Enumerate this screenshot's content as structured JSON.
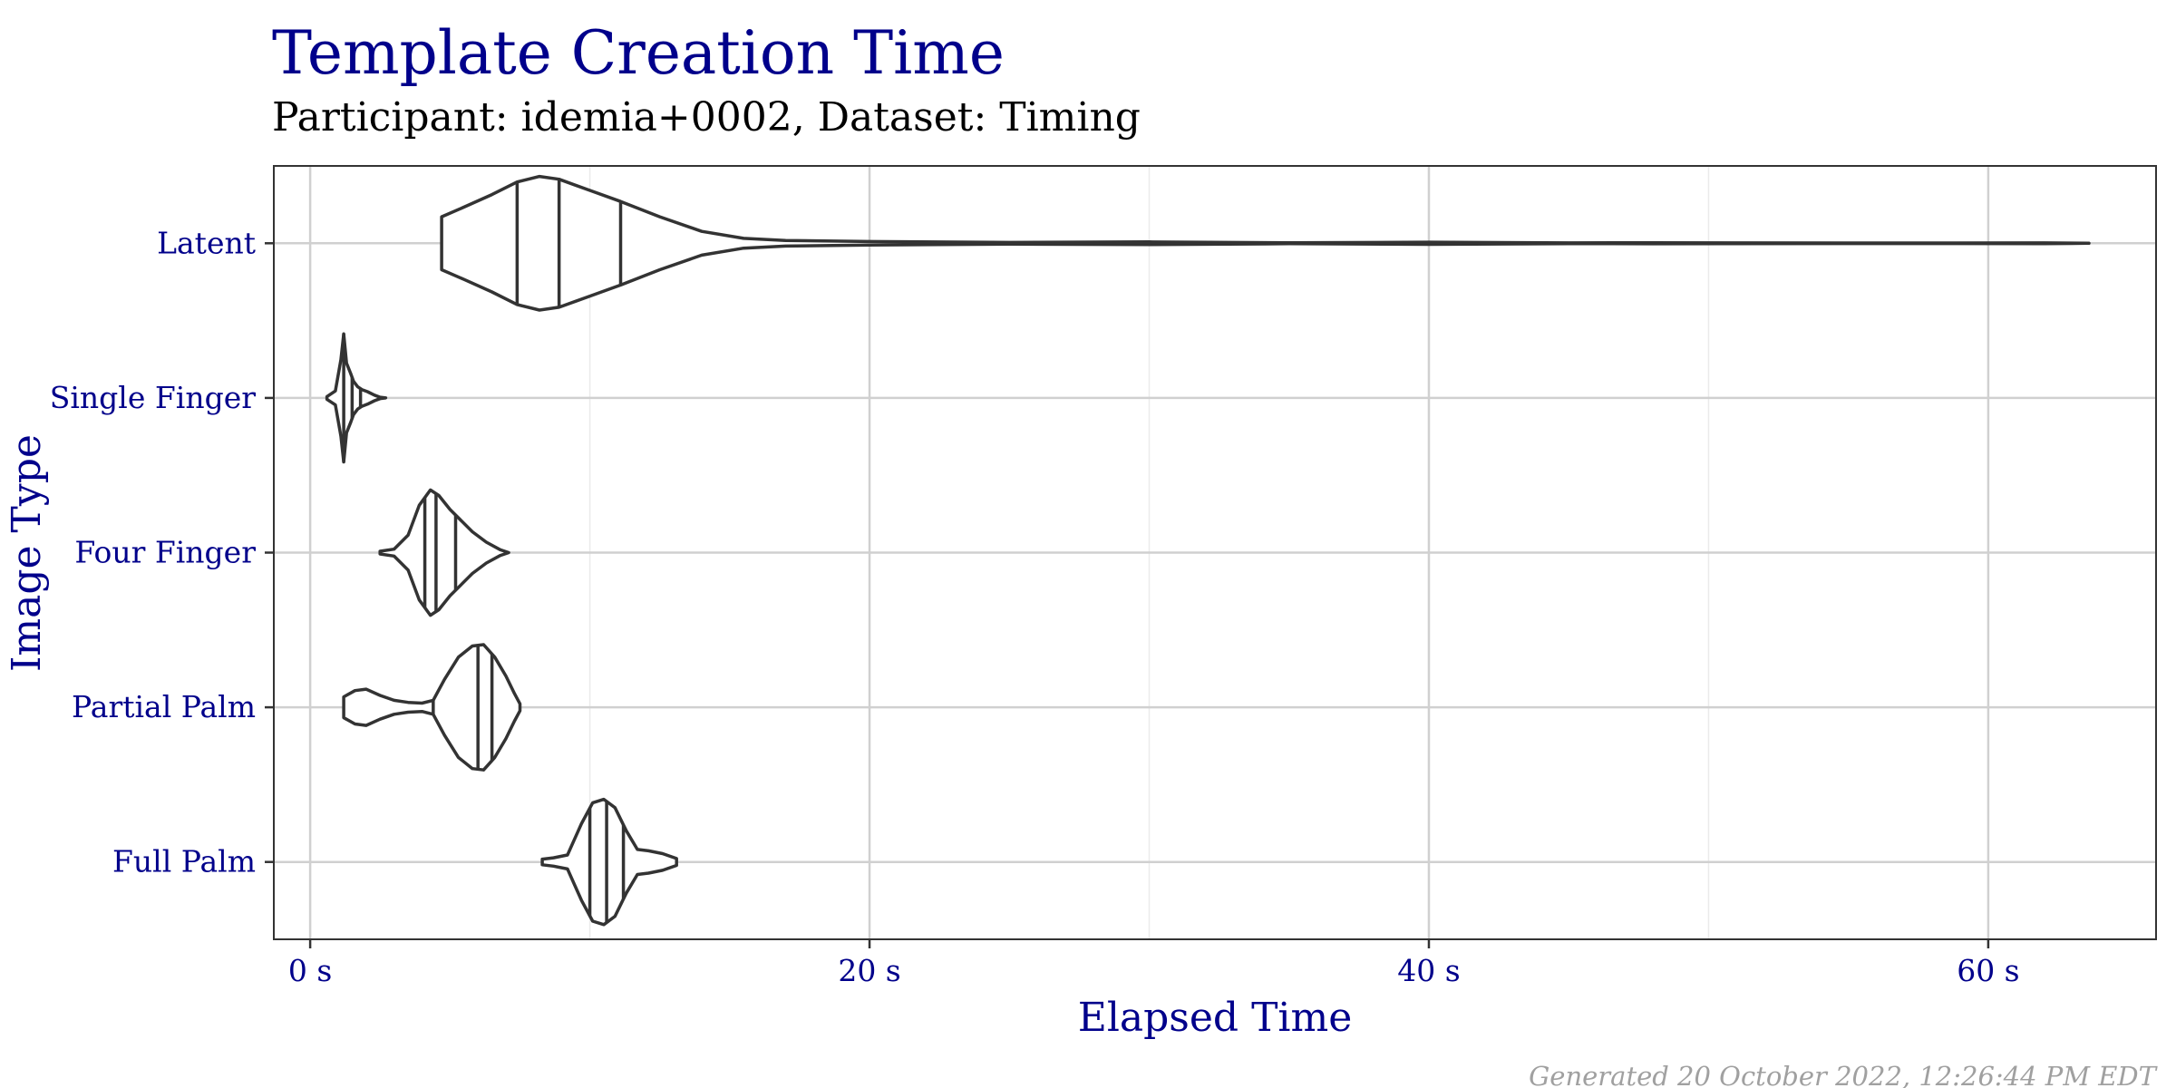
{
  "colors": {
    "title": "#00008b",
    "subtitle": "#000000",
    "caption": "#a0a0a0",
    "violin_stroke": "#333333",
    "grid_major": "#d0d0d0",
    "grid_minor": "#ebebeb",
    "panel_border": "#333333"
  },
  "chart_data": {
    "type": "violin",
    "title": "Template Creation Time",
    "subtitle": "Participant: idemia+0002, Dataset: Timing",
    "xlabel": "Elapsed Time",
    "ylabel": "Image Type",
    "caption": "Generated 20 October 2022, 12:26:44 PM EDT",
    "xlim": [
      -1.3,
      66.0
    ],
    "x_ticks": [
      0,
      20,
      40,
      60
    ],
    "x_tick_labels": [
      "0 s",
      "20 s",
      "40 s",
      "60 s"
    ],
    "x_minor_ticks": [
      10,
      30,
      50
    ],
    "grid": true,
    "categories": [
      "Latent",
      "Single Finger",
      "Four Finger",
      "Partial Palm",
      "Full Palm"
    ],
    "series": [
      {
        "category": "Latent",
        "min": 4.7,
        "max": 63.6,
        "quantiles": [
          7.4,
          8.9,
          11.1
        ],
        "density": [
          [
            4.7,
            0.38
          ],
          [
            5.5,
            0.52
          ],
          [
            6.5,
            0.7
          ],
          [
            7.4,
            0.88
          ],
          [
            8.2,
            0.96
          ],
          [
            8.9,
            0.92
          ],
          [
            10,
            0.76
          ],
          [
            11.1,
            0.6
          ],
          [
            12.5,
            0.38
          ],
          [
            14,
            0.17
          ],
          [
            15.5,
            0.07
          ],
          [
            17,
            0.04
          ],
          [
            20,
            0.025
          ],
          [
            25,
            0.012
          ],
          [
            30,
            0.02
          ],
          [
            35,
            0.006
          ],
          [
            40,
            0.015
          ],
          [
            45,
            0.005
          ],
          [
            48,
            0.008
          ],
          [
            55,
            0.004
          ],
          [
            62,
            0.005
          ],
          [
            63.6,
            0.0
          ]
        ]
      },
      {
        "category": "Single Finger",
        "min": 0.6,
        "max": 2.7,
        "quantiles": [
          1.2,
          1.5,
          1.8
        ],
        "density": [
          [
            0.6,
            0.02
          ],
          [
            0.9,
            0.1
          ],
          [
            1.1,
            0.55
          ],
          [
            1.2,
            0.92
          ],
          [
            1.3,
            0.5
          ],
          [
            1.45,
            0.35
          ],
          [
            1.55,
            0.24
          ],
          [
            1.7,
            0.16
          ],
          [
            1.85,
            0.12
          ],
          [
            2.05,
            0.09
          ],
          [
            2.3,
            0.04
          ],
          [
            2.5,
            0.01
          ],
          [
            2.7,
            0.0
          ]
        ]
      },
      {
        "category": "Four Finger",
        "min": 2.5,
        "max": 7.1,
        "quantiles": [
          4.1,
          4.5,
          5.2
        ],
        "density": [
          [
            2.5,
            0.02
          ],
          [
            3.0,
            0.05
          ],
          [
            3.5,
            0.25
          ],
          [
            3.9,
            0.68
          ],
          [
            4.3,
            0.9
          ],
          [
            4.6,
            0.82
          ],
          [
            5.0,
            0.62
          ],
          [
            5.4,
            0.46
          ],
          [
            5.8,
            0.3
          ],
          [
            6.3,
            0.15
          ],
          [
            6.8,
            0.04
          ],
          [
            7.1,
            0.0
          ]
        ]
      },
      {
        "category": "Partial Palm",
        "min": 1.2,
        "max": 7.5,
        "quantiles": [
          4.4,
          6.0,
          6.5
        ],
        "density": [
          [
            1.2,
            0.15
          ],
          [
            1.6,
            0.24
          ],
          [
            2.0,
            0.26
          ],
          [
            2.5,
            0.17
          ],
          [
            3.0,
            0.1
          ],
          [
            3.5,
            0.07
          ],
          [
            4.0,
            0.06
          ],
          [
            4.4,
            0.1
          ],
          [
            4.8,
            0.4
          ],
          [
            5.3,
            0.72
          ],
          [
            5.8,
            0.88
          ],
          [
            6.2,
            0.9
          ],
          [
            6.6,
            0.72
          ],
          [
            7.0,
            0.45
          ],
          [
            7.3,
            0.2
          ],
          [
            7.5,
            0.05
          ]
        ]
      },
      {
        "category": "Full Palm",
        "min": 8.3,
        "max": 13.1,
        "quantiles": [
          10.0,
          10.6,
          11.2
        ],
        "density": [
          [
            8.3,
            0.04
          ],
          [
            8.7,
            0.06
          ],
          [
            9.2,
            0.1
          ],
          [
            9.7,
            0.55
          ],
          [
            10.1,
            0.85
          ],
          [
            10.5,
            0.9
          ],
          [
            10.9,
            0.78
          ],
          [
            11.3,
            0.45
          ],
          [
            11.7,
            0.18
          ],
          [
            12.1,
            0.16
          ],
          [
            12.6,
            0.12
          ],
          [
            13.1,
            0.05
          ]
        ]
      }
    ]
  }
}
